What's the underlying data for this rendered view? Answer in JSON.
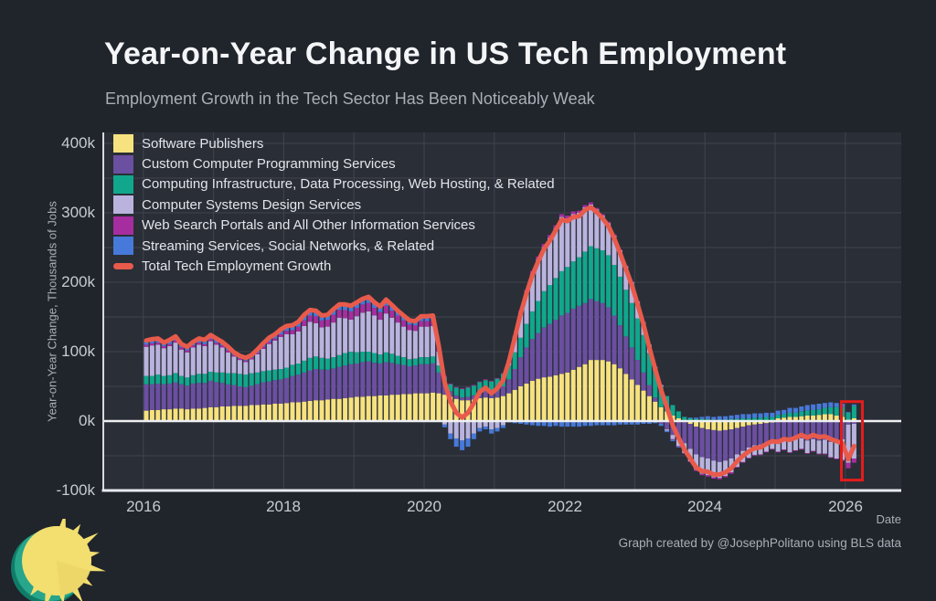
{
  "header": {
    "title": "Year-on-Year Change in US Tech Employment",
    "subtitle": "Employment Growth in the Tech Sector Has Been Noticeably Weak"
  },
  "footer": {
    "attribution": "Graph created by @JosephPolitano using BLS data"
  },
  "logo": {
    "icon": "sun-icon"
  },
  "chart_data": {
    "type": "bar",
    "subtype": "stacked-bars-with-total-line",
    "title": "Year-on-Year Change in US Tech Employment",
    "subtitle": "Employment Growth in the Tech Sector Has Been Noticeably Weak",
    "x_axis": {
      "label": "Date",
      "ticks": [
        "2016",
        "2018",
        "2020",
        "2022",
        "2024",
        "2026"
      ],
      "start": "2016-01",
      "end": "2026-02",
      "frequency": "monthly"
    },
    "y_axis": {
      "label": "Year-on-Year Change, Thousands of Jobs",
      "ticks": [
        "400k",
        "300k",
        "200k",
        "100k",
        "0k",
        "-100k"
      ],
      "units": "thousands of jobs",
      "ylim_k": [
        -100,
        418
      ],
      "gridline_step_k": 50
    },
    "grid": true,
    "legend_position": "top-left-inside",
    "colors": {
      "background": "#20242b",
      "plot_background": "#2a2e37",
      "gridline": "#3f444e",
      "zero_line": "#eef0f2",
      "axis_frame": "#e8eaee"
    },
    "series": [
      {
        "name": "Software Publishers",
        "color": "#f6e27f",
        "values": [
          15,
          16,
          16,
          17,
          17,
          18,
          18,
          17,
          18,
          18,
          19,
          20,
          20,
          21,
          21,
          22,
          22,
          22,
          23,
          23,
          24,
          24,
          25,
          25,
          26,
          27,
          27,
          28,
          29,
          30,
          30,
          31,
          32,
          32,
          33,
          34,
          35,
          35,
          36,
          36,
          37,
          37,
          38,
          38,
          39,
          39,
          40,
          40,
          40,
          41,
          40,
          38,
          35,
          32,
          30,
          30,
          31,
          33,
          34,
          33,
          34,
          36,
          40,
          45,
          50,
          54,
          58,
          61,
          63,
          64,
          66,
          68,
          70,
          74,
          78,
          82,
          88,
          88,
          88,
          86,
          82,
          76,
          68,
          60,
          52,
          44,
          36,
          28,
          20,
          14,
          8,
          4,
          0,
          -4,
          -8,
          -10,
          -12,
          -13,
          -14,
          -13,
          -12,
          -10,
          -8,
          -6,
          -5,
          -4,
          -3,
          -2,
          4,
          5,
          6,
          6,
          7,
          8,
          8,
          9,
          10,
          10,
          8,
          6,
          2,
          4
        ]
      },
      {
        "name": "Custom Computer Programming Services",
        "color": "#6b4fa1",
        "values": [
          38,
          37,
          38,
          36,
          37,
          38,
          35,
          34,
          36,
          37,
          36,
          38,
          36,
          34,
          32,
          30,
          28,
          27,
          28,
          30,
          32,
          33,
          34,
          35,
          36,
          38,
          40,
          42,
          44,
          45,
          44,
          43,
          44,
          46,
          47,
          48,
          48,
          50,
          50,
          48,
          46,
          48,
          46,
          44,
          42,
          40,
          40,
          42,
          42,
          42,
          30,
          15,
          8,
          5,
          4,
          5,
          6,
          8,
          9,
          8,
          10,
          14,
          20,
          30,
          42,
          52,
          60,
          66,
          72,
          76,
          80,
          84,
          86,
          88,
          88,
          88,
          88,
          85,
          82,
          78,
          70,
          62,
          54,
          46,
          36,
          26,
          16,
          6,
          -4,
          -12,
          -20,
          -26,
          -32,
          -36,
          -40,
          -42,
          -42,
          -44,
          -45,
          -44,
          -42,
          -38,
          -35,
          -32,
          -30,
          -30,
          -28,
          -26,
          -28,
          -26,
          -28,
          -26,
          -25,
          -28,
          -26,
          -28,
          -27,
          -30,
          -28,
          -26,
          -5,
          -4
        ]
      },
      {
        "name": "Computing Infrastructure, Data Processing, Web Hosting, & Related",
        "color": "#10a78d",
        "values": [
          12,
          12,
          13,
          12,
          12,
          13,
          12,
          12,
          12,
          13,
          13,
          13,
          14,
          15,
          16,
          17,
          18,
          18,
          18,
          17,
          16,
          16,
          15,
          15,
          15,
          16,
          16,
          17,
          18,
          18,
          17,
          16,
          16,
          17,
          18,
          18,
          16,
          15,
          14,
          14,
          13,
          14,
          13,
          12,
          11,
          10,
          10,
          10,
          10,
          10,
          10,
          10,
          10,
          11,
          12,
          13,
          14,
          15,
          16,
          16,
          17,
          18,
          20,
          24,
          28,
          34,
          40,
          46,
          52,
          56,
          60,
          64,
          66,
          68,
          70,
          74,
          76,
          76,
          76,
          75,
          73,
          70,
          67,
          64,
          60,
          54,
          46,
          38,
          30,
          22,
          15,
          10,
          6,
          4,
          3,
          3,
          3,
          2,
          2,
          2,
          3,
          3,
          4,
          4,
          5,
          5,
          6,
          6,
          5,
          5,
          6,
          6,
          7,
          7,
          8,
          8,
          9,
          10,
          12,
          14,
          10,
          18
        ]
      },
      {
        "name": "Computer Systems Design Services",
        "color": "#b9b3de",
        "values": [
          42,
          44,
          43,
          40,
          42,
          44,
          38,
          36,
          40,
          42,
          40,
          44,
          40,
          36,
          30,
          24,
          20,
          18,
          20,
          26,
          32,
          38,
          42,
          46,
          48,
          44,
          46,
          50,
          52,
          48,
          44,
          46,
          50,
          54,
          50,
          46,
          52,
          56,
          58,
          54,
          50,
          56,
          52,
          48,
          44,
          42,
          40,
          44,
          44,
          44,
          20,
          -5,
          -18,
          -25,
          -28,
          -25,
          -18,
          -10,
          -8,
          -12,
          -10,
          -6,
          6,
          22,
          36,
          46,
          54,
          60,
          64,
          68,
          72,
          78,
          70,
          68,
          64,
          64,
          60,
          56,
          50,
          46,
          42,
          38,
          34,
          30,
          24,
          18,
          12,
          6,
          2,
          -2,
          -6,
          -10,
          -14,
          -18,
          -22,
          -24,
          -24,
          -24,
          -23,
          -22,
          -20,
          -18,
          -16,
          -15,
          -14,
          -14,
          -13,
          -12,
          -16,
          -15,
          -17,
          -16,
          -15,
          -18,
          -17,
          -19,
          -20,
          -22,
          -26,
          -30,
          -55,
          -50
        ]
      },
      {
        "name": "Web Search Portals and All Other Information Services",
        "color": "#a62da0",
        "values": [
          3,
          3,
          3,
          3,
          3,
          3,
          3,
          3,
          3,
          3,
          3,
          3,
          3,
          3,
          3,
          2,
          2,
          2,
          2,
          2,
          3,
          3,
          3,
          4,
          5,
          6,
          7,
          8,
          9,
          10,
          10,
          10,
          11,
          11,
          12,
          12,
          12,
          12,
          12,
          11,
          11,
          11,
          10,
          10,
          9,
          8,
          8,
          8,
          8,
          8,
          5,
          2,
          1,
          1,
          1,
          1,
          1,
          1,
          1,
          1,
          1,
          1,
          2,
          2,
          3,
          3,
          4,
          4,
          4,
          4,
          4,
          4,
          4,
          4,
          3,
          3,
          3,
          2,
          2,
          2,
          2,
          1,
          1,
          1,
          1,
          1,
          0,
          0,
          0,
          0,
          -1,
          -1,
          -1,
          -1,
          -2,
          -2,
          -2,
          -2,
          -2,
          -2,
          -2,
          -1,
          -1,
          -1,
          -1,
          -1,
          -1,
          -1,
          -1,
          -1,
          -1,
          -1,
          -1,
          -1,
          -1,
          -1,
          -1,
          -1,
          -1,
          -1,
          -8,
          -6
        ]
      },
      {
        "name": "Streaming Services, Social Networks, & Related",
        "color": "#4679d9",
        "values": [
          6,
          6,
          6,
          5,
          6,
          6,
          5,
          5,
          5,
          6,
          6,
          6,
          6,
          5,
          5,
          4,
          4,
          4,
          4,
          5,
          5,
          6,
          6,
          7,
          7,
          7,
          7,
          8,
          8,
          8,
          7,
          7,
          8,
          8,
          8,
          8,
          8,
          8,
          9,
          8,
          8,
          9,
          8,
          7,
          7,
          6,
          6,
          7,
          7,
          7,
          3,
          -4,
          -8,
          -12,
          -14,
          -12,
          -8,
          -5,
          -4,
          -6,
          -5,
          -4,
          -2,
          -3,
          -4,
          -5,
          -6,
          -7,
          -7,
          -8,
          -7,
          -8,
          -8,
          -8,
          -8,
          -7,
          -7,
          -6,
          -6,
          -6,
          -6,
          -5,
          -5,
          -5,
          -5,
          -4,
          -4,
          -3,
          -3,
          -2,
          -2,
          -1,
          0,
          1,
          2,
          3,
          4,
          4,
          5,
          5,
          5,
          6,
          6,
          6,
          6,
          6,
          6,
          6,
          6,
          6,
          7,
          7,
          7,
          8,
          8,
          8,
          7,
          7,
          6,
          5,
          1,
          2
        ]
      }
    ],
    "total_line": {
      "name": "Total Tech Employment Growth",
      "color": "#e85a4b",
      "values_are_sum_of_stacked_series": true
    },
    "annotation": {
      "shape": "rectangle-highlight",
      "color": "#e41c1c",
      "highlights": "most recent months",
      "x_start": "2025-12",
      "x_end": "2026-03",
      "y_top_k": 28,
      "y_bottom_k": -85
    }
  }
}
